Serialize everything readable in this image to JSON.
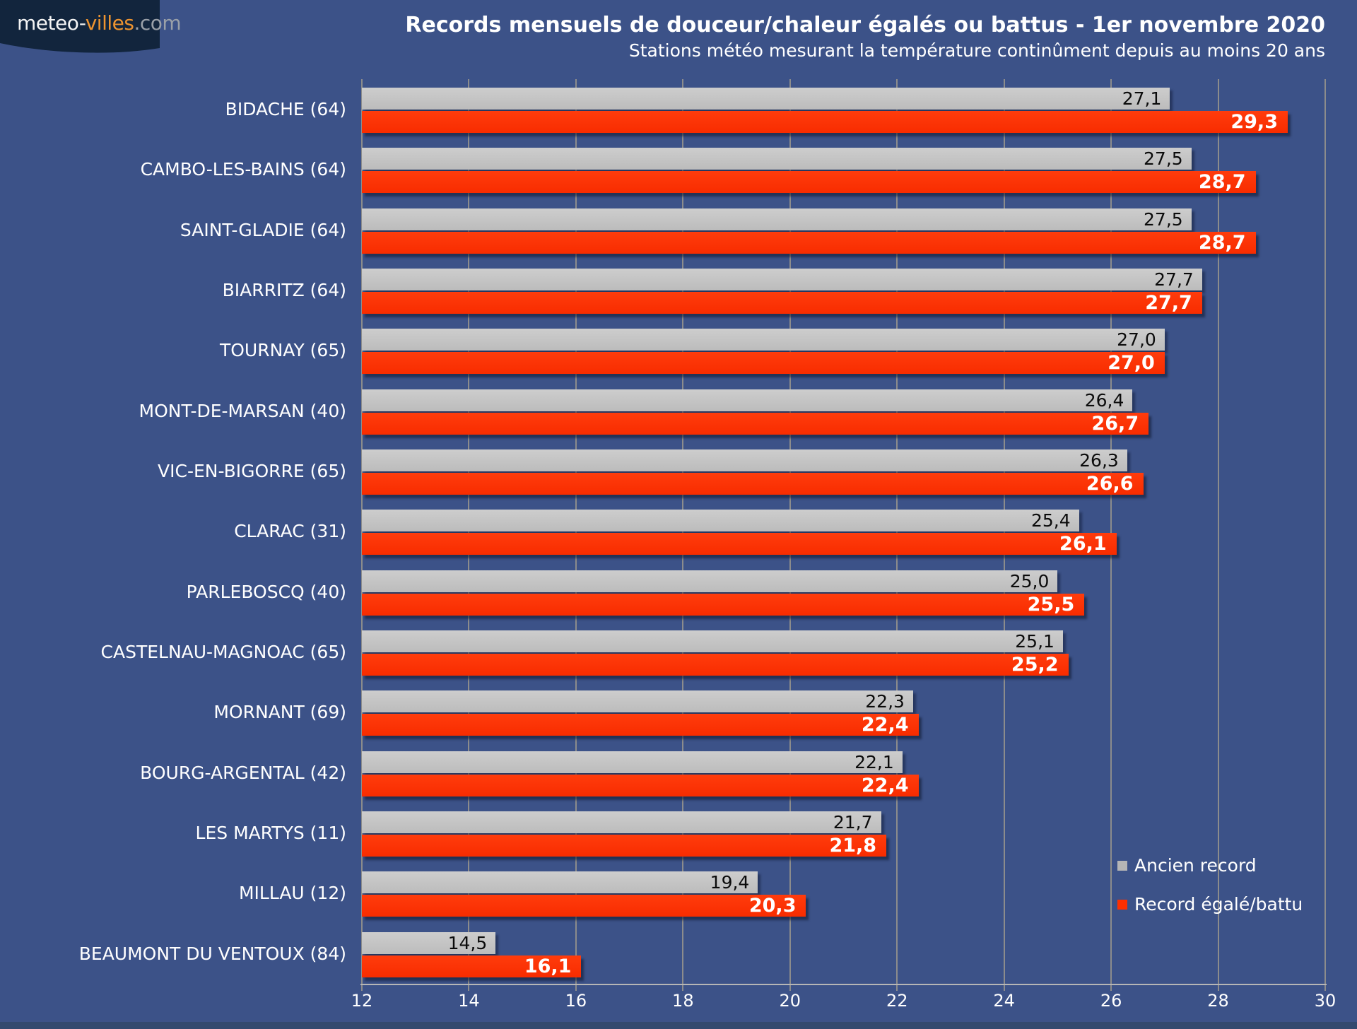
{
  "logo": {
    "part1": "meteo-",
    "part2": "villes",
    "part3": ".com"
  },
  "header": {
    "title": "Records mensuels de douceur/chaleur égalés ou battus - 1er novembre 2020",
    "subtitle": "Stations météo mesurant la température continûment depuis au moins 20 ans"
  },
  "colors": {
    "background": "#3C5288",
    "ancien_record": "#C2C2C2",
    "record_battu": "#FF2F00",
    "gridline": "#8C8C8C",
    "text": "#FFFFFF"
  },
  "legend": {
    "items": [
      {
        "label": "Ancien record",
        "color": "#B5B5B5"
      },
      {
        "label": "Record égalé/battu",
        "color": "#FF2F00"
      }
    ]
  },
  "chart_data": {
    "type": "bar",
    "orientation": "horizontal",
    "title": "Records mensuels de douceur/chaleur égalés ou battus - 1er novembre 2020",
    "subtitle": "Stations météo mesurant la température continûment depuis au moins 20 ans",
    "categories": [
      "BIDACHE (64)",
      "CAMBO-LES-BAINS (64)",
      "SAINT-GLADIE (64)",
      "BIARRITZ (64)",
      "TOURNAY (65)",
      "MONT-DE-MARSAN (40)",
      "VIC-EN-BIGORRE (65)",
      "CLARAC (31)",
      "PARLEBOSCQ (40)",
      "CASTELNAU-MAGNOAC (65)",
      "MORNANT (69)",
      "BOURG-ARGENTAL (42)",
      "LES MARTYS (11)",
      "MILLAU (12)",
      "BEAUMONT DU VENTOUX (84)"
    ],
    "series": [
      {
        "name": "Ancien record",
        "color": "#C2C2C2",
        "values": [
          27.1,
          27.5,
          27.5,
          27.7,
          27.0,
          26.4,
          26.3,
          25.4,
          25.0,
          25.1,
          22.3,
          22.1,
          21.7,
          19.4,
          14.5
        ],
        "labels": [
          "27,1",
          "27,5",
          "27,5",
          "27,7",
          "27,0",
          "26,4",
          "26,3",
          "25,4",
          "25,0",
          "25,1",
          "22,3",
          "22,1",
          "21,7",
          "19,4",
          "14,5"
        ]
      },
      {
        "name": "Record égalé/battu",
        "color": "#FF2F00",
        "values": [
          29.3,
          28.7,
          28.7,
          27.7,
          27.0,
          26.7,
          26.6,
          26.1,
          25.5,
          25.2,
          22.4,
          22.4,
          21.8,
          20.3,
          16.1
        ],
        "labels": [
          "29,3",
          "28,7",
          "28,7",
          "27,7",
          "27,0",
          "26,7",
          "26,6",
          "26,1",
          "25,5",
          "25,2",
          "22,4",
          "22,4",
          "21,8",
          "20,3",
          "16,1"
        ]
      }
    ],
    "xlim": [
      12,
      30
    ],
    "ticks": [
      12,
      14,
      16,
      18,
      20,
      22,
      24,
      26,
      28,
      30
    ],
    "tick_labels": [
      "12",
      "14",
      "16",
      "18",
      "20",
      "22",
      "24",
      "26",
      "28",
      "30"
    ],
    "grid": true,
    "legend_position": "bottom-right"
  }
}
